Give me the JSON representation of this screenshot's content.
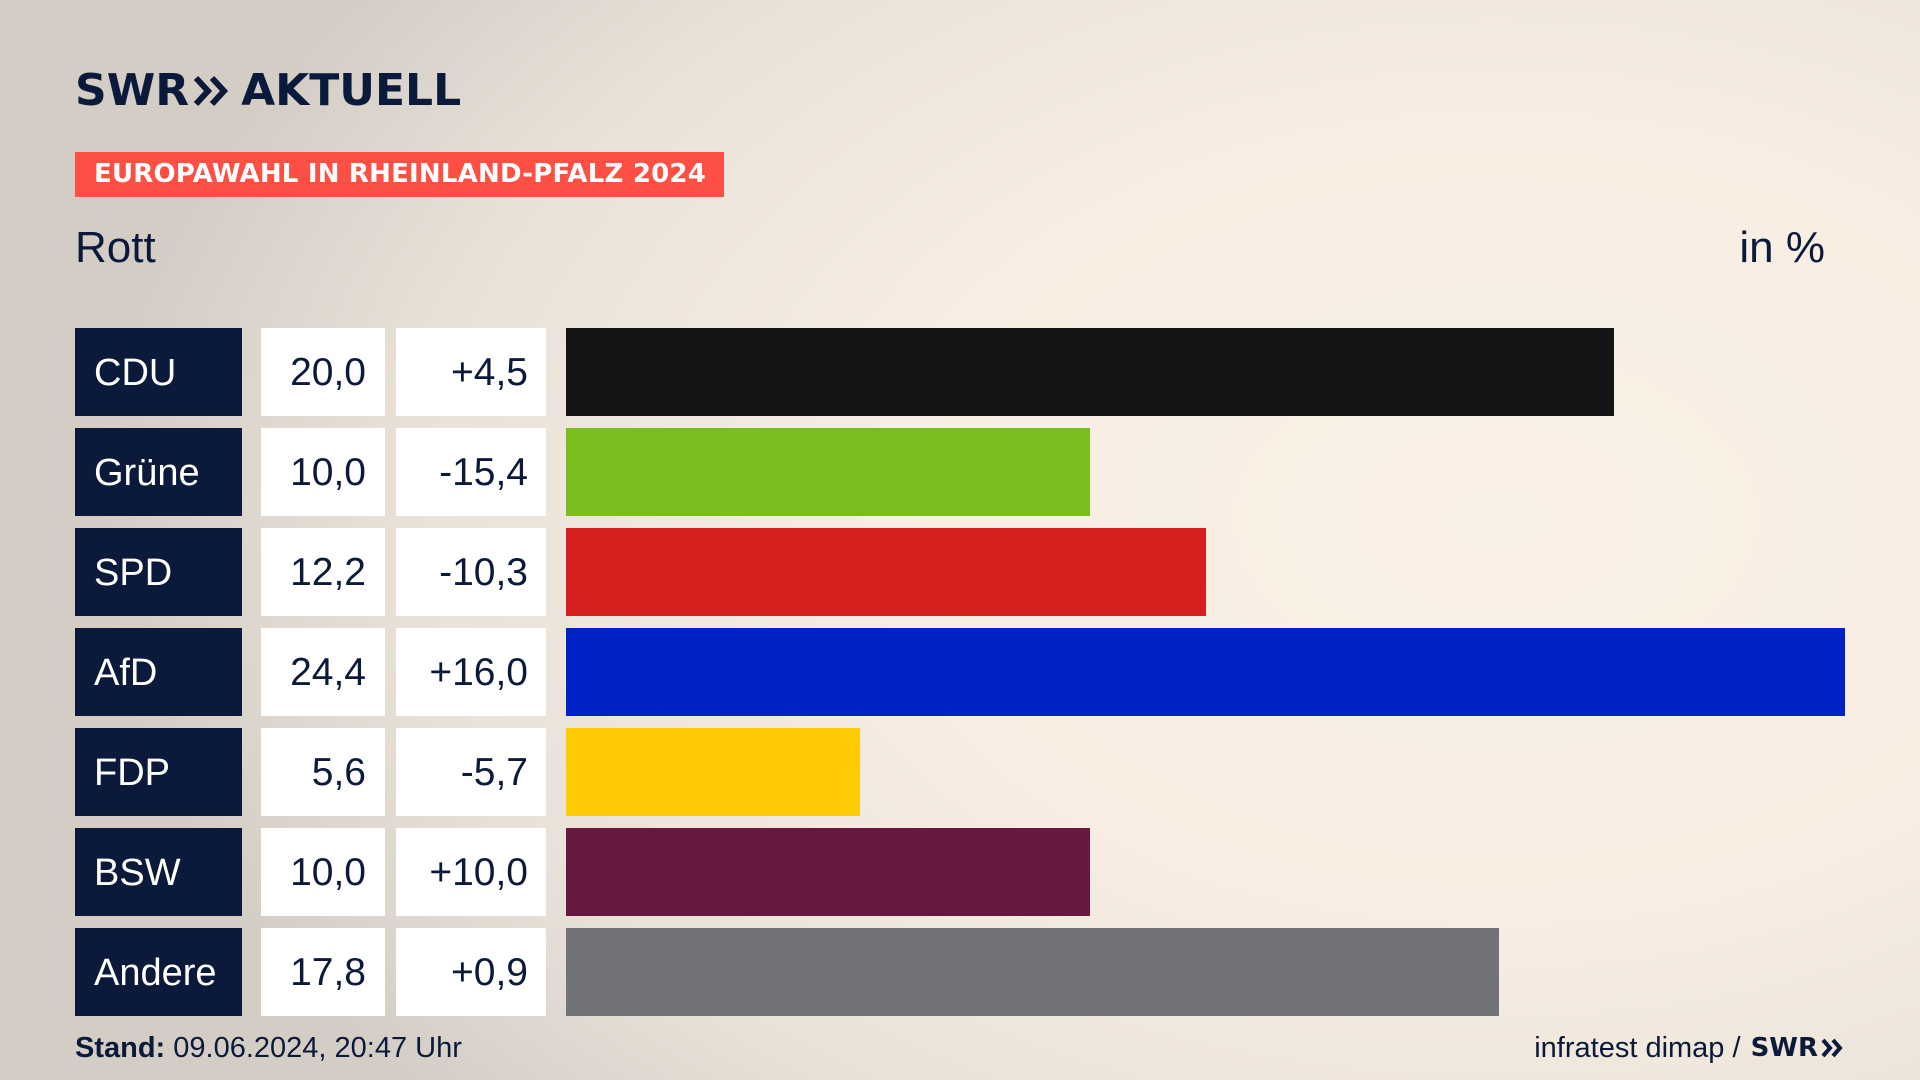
{
  "brand": {
    "logo_left": "SWR",
    "logo_right": "AKTUELL"
  },
  "banner": "EUROPAWAHL IN RHEINLAND-PFALZ 2024",
  "region": "Rott",
  "unit_label": "in %",
  "footer": {
    "stand_label": "Stand:",
    "stand_value": "09.06.2024, 20:47 Uhr",
    "source": "infratest dimap /",
    "source_brand": "SWR"
  },
  "chart_data": {
    "type": "bar",
    "orientation": "horizontal",
    "title": "",
    "categories": [
      "CDU",
      "Grüne",
      "SPD",
      "AfD",
      "FDP",
      "BSW",
      "Andere"
    ],
    "values": [
      20.0,
      10.0,
      12.2,
      24.4,
      5.6,
      10.0,
      17.8
    ],
    "value_labels": [
      "20,0",
      "10,0",
      "12,2",
      "24,4",
      "5,6",
      "10,0",
      "17,8"
    ],
    "change_labels": [
      "+4,5",
      "-15,4",
      "-10,3",
      "+16,0",
      "-5,7",
      "+10,0",
      "+0,9"
    ],
    "colors": [
      "#141414",
      "#7abe1e",
      "#d61f1f",
      "#0022c7",
      "#ffcc04",
      "#661840",
      "#727376"
    ],
    "xlim": [
      0,
      24.4
    ],
    "grid": false,
    "legend": "none"
  }
}
